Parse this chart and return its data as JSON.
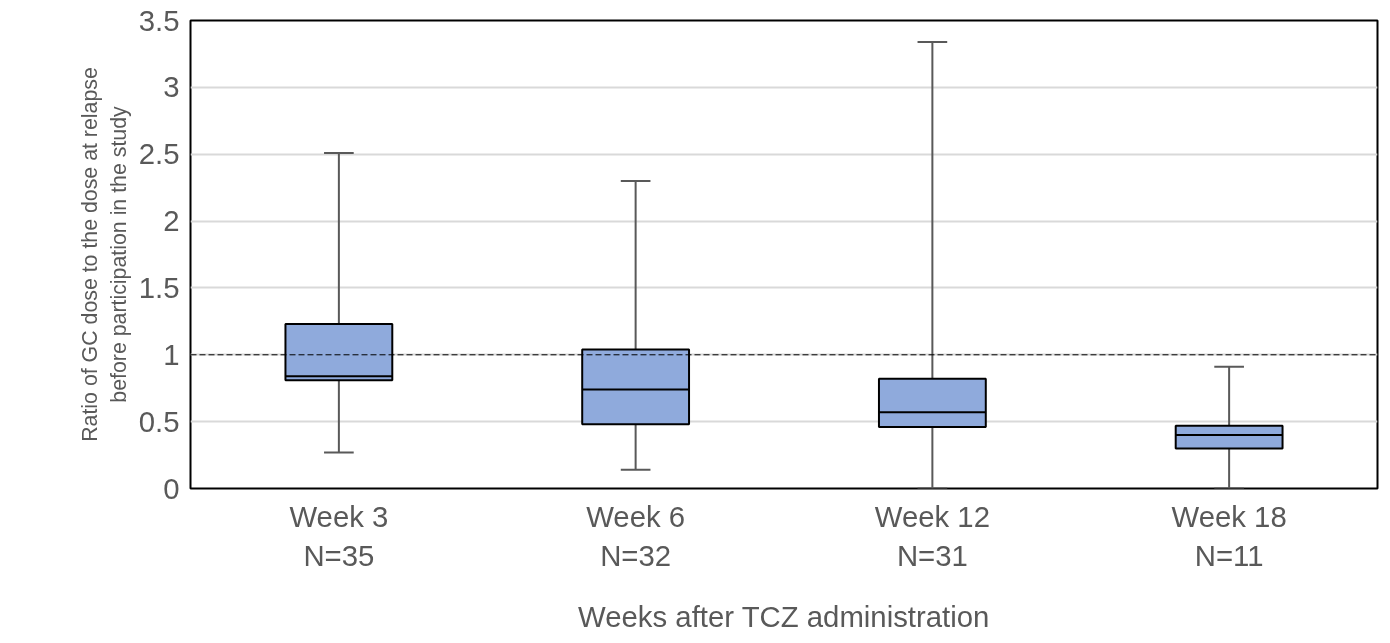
{
  "chart_data": {
    "type": "box",
    "xlabel": "Weeks after TCZ administration",
    "ylabel": "Ratio of GC dose to the dose at relapse\nbefore participation in the study",
    "categories": [
      "Week 3\nN=35",
      "Week 6\nN=32",
      "Week 12\nN=31",
      "Week 18\nN=11"
    ],
    "color": "#8faadc",
    "boxes": [
      {
        "low": 0.27,
        "q1": 0.81,
        "median": 0.84,
        "q3": 1.23,
        "high": 2.51
      },
      {
        "low": 0.14,
        "q1": 0.48,
        "median": 0.74,
        "q3": 1.04,
        "high": 2.3
      },
      {
        "low": 0,
        "q1": 0.46,
        "median": 0.57,
        "q3": 0.82,
        "high": 3.34
      },
      {
        "low": 0,
        "q1": 0.3,
        "median": 0.4,
        "q3": 0.47,
        "high": 0.91
      }
    ],
    "ylim": [
      0,
      3.5
    ],
    "yticks": [
      0,
      0.5,
      1,
      1.5,
      2,
      2.5,
      3,
      3.5
    ],
    "grid": "y",
    "ref_lines": [
      {
        "axis": "y",
        "value": 1,
        "color": "#000000",
        "line_style": "dashed"
      }
    ]
  }
}
